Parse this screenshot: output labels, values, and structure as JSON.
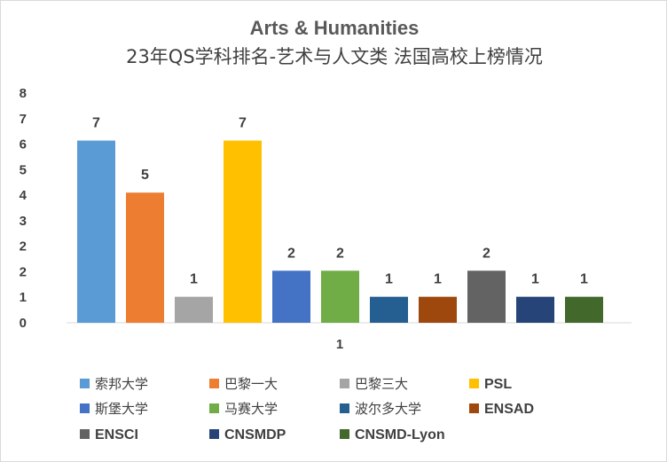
{
  "chart_data": {
    "type": "bar",
    "title": "Arts & Humanities",
    "subtitle": "23年QS学科排名-艺术与人文类 法国高校上榜情况",
    "categories": [
      "1"
    ],
    "y_tick_labels": [
      "0",
      "1",
      "2",
      "2",
      "3",
      "4",
      "5",
      "6",
      "7",
      "8"
    ],
    "ylim": [
      0,
      7.1
    ],
    "grid": false,
    "legend_position": "bottom",
    "series": [
      {
        "name": "索邦大学",
        "values": [
          7
        ],
        "label": "7",
        "color": "#5B9BD5"
      },
      {
        "name": "巴黎一大",
        "values": [
          5
        ],
        "label": "5",
        "color": "#ED7D31"
      },
      {
        "name": "巴黎三大",
        "values": [
          1
        ],
        "label": "1",
        "color": "#A5A5A5"
      },
      {
        "name": "PSL",
        "values": [
          7
        ],
        "label": "7",
        "color": "#FFC000"
      },
      {
        "name": "斯堡大学",
        "values": [
          2
        ],
        "label": "2",
        "color": "#4472C4"
      },
      {
        "name": "马赛大学",
        "values": [
          2
        ],
        "label": "2",
        "color": "#70AD47"
      },
      {
        "name": "波尔多大学",
        "values": [
          1
        ],
        "label": "1",
        "color": "#255E91"
      },
      {
        "name": "ENSAD",
        "values": [
          1
        ],
        "label": "1",
        "color": "#9E480E"
      },
      {
        "name": "ENSCI",
        "values": [
          2
        ],
        "label": "2",
        "color": "#636363"
      },
      {
        "name": "CNSMDP",
        "values": [
          1
        ],
        "label": "1",
        "color": "#264478"
      },
      {
        "name": "CNSMD-Lyon",
        "values": [
          1
        ],
        "label": "1",
        "color": "#43682B"
      }
    ]
  }
}
